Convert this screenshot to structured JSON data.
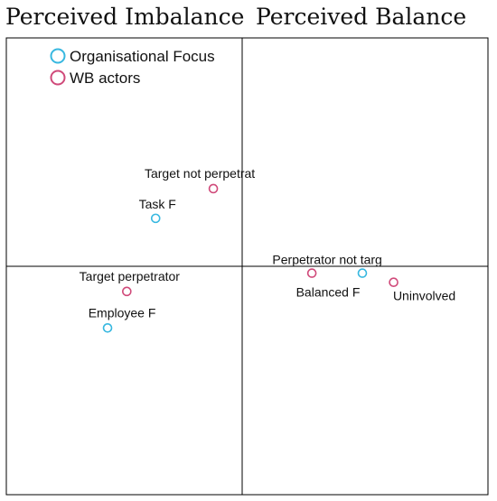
{
  "header": {
    "left_title": "Perceived Imbalance",
    "right_title": "Perceived Balance"
  },
  "chart_data": {
    "type": "scatter",
    "title": "",
    "xlabel": "",
    "ylabel": "",
    "xlim": [
      -1,
      1
    ],
    "ylim": [
      -1,
      1
    ],
    "grid": false,
    "legend_position": "top-left",
    "series": [
      {
        "name": "Organisational Focus",
        "color": "#38b8e0",
        "points": [
          {
            "label": "Task F",
            "x": -0.36,
            "y": 0.21
          },
          {
            "label": "Employee F",
            "x": -0.56,
            "y": -0.27
          },
          {
            "label": "Balanced F",
            "x": 0.5,
            "y": -0.03
          }
        ]
      },
      {
        "name": "WB actors",
        "color": "#d04a7a",
        "points": [
          {
            "label": "Target not perpetrat",
            "x": -0.12,
            "y": 0.34
          },
          {
            "label": "Target perpetrator",
            "x": -0.48,
            "y": -0.11
          },
          {
            "label": "Perpetrator not targ",
            "x": 0.29,
            "y": -0.03
          },
          {
            "label": "Uninvolved",
            "x": 0.63,
            "y": -0.07
          }
        ]
      }
    ]
  }
}
